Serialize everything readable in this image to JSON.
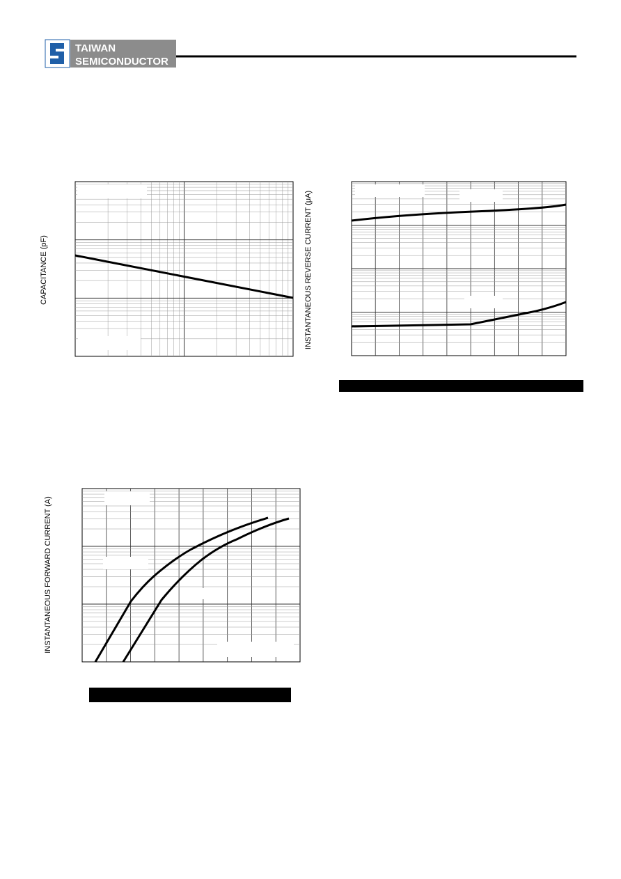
{
  "header": {
    "logo_line1": "TAIWAN",
    "logo_line2": "SEMICONDUCTOR"
  },
  "figures": [
    {
      "y_label": "CAPACITANCE (pF)"
    },
    {
      "y_label": "INSTANTANEOUS REVERSE CURRENT (μA)"
    },
    {
      "y_label": "INSTANTANEOUS FORWARD CURRENT (A)"
    }
  ]
}
